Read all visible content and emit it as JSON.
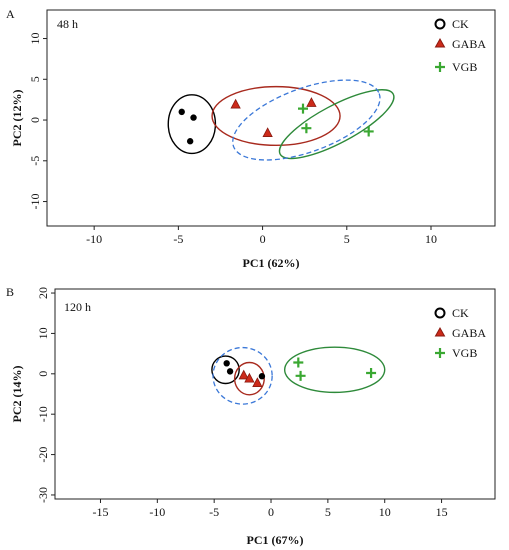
{
  "chart_data": [
    {
      "panel": "A",
      "type": "scatter",
      "annotation": "48 h",
      "xlabel": "PC1 (62%)",
      "ylabel": "PC2 (12%)",
      "xlim": [
        -12.8,
        13.8
      ],
      "ylim": [
        -13,
        13.5
      ],
      "xticks": [
        -10,
        -5,
        0,
        5,
        10
      ],
      "yticks": [
        10,
        5,
        0,
        -5,
        -10
      ],
      "legend": "top-right",
      "series": [
        {
          "name": "CK",
          "marker": "circle",
          "color": "#000000",
          "points": [
            [
              -4.8,
              1.0
            ],
            [
              -4.1,
              0.3
            ],
            [
              -4.3,
              -2.6
            ]
          ]
        },
        {
          "name": "GABA",
          "marker": "triangle",
          "color": "#cc2a1a",
          "points": [
            [
              -1.6,
              1.9
            ],
            [
              0.3,
              -1.6
            ],
            [
              2.9,
              2.1
            ]
          ]
        },
        {
          "name": "VGB",
          "marker": "plus",
          "color": "#3aa832",
          "points": [
            [
              2.4,
              1.4
            ],
            [
              2.6,
              -1.0
            ],
            [
              6.3,
              -1.4
            ]
          ]
        }
      ],
      "ellipses": [
        {
          "group": "CK",
          "color": "#000000",
          "cx": -4.2,
          "cy": -0.5,
          "rx": 1.4,
          "ry": 3.6,
          "angle": 0,
          "dash": false
        },
        {
          "group": "GABA",
          "color": "#a82a1e",
          "cx": 0.8,
          "cy": 0.5,
          "rx": 3.8,
          "ry": 3.6,
          "angle": 0,
          "dash": false
        },
        {
          "group": "VGB",
          "color": "#2e8a3a",
          "cx": 4.4,
          "cy": -0.5,
          "rx": 3.8,
          "ry": 2.3,
          "angle": -28,
          "dash": false
        },
        {
          "group": "all",
          "color": "#3b78d8",
          "cx": 2.6,
          "cy": 0.0,
          "rx": 4.6,
          "ry": 3.9,
          "angle": -20,
          "dash": true
        }
      ]
    },
    {
      "panel": "B",
      "type": "scatter",
      "annotation": "120 h",
      "xlabel": "PC1 (67%)",
      "ylabel": "PC2 (14%)",
      "xlim": [
        -19,
        19.7
      ],
      "ylim": [
        -31,
        21
      ],
      "xticks": [
        -15,
        -10,
        -5,
        0,
        5,
        10,
        15
      ],
      "yticks": [
        20,
        10,
        0,
        -10,
        -20,
        -30
      ],
      "legend": "top-right",
      "series": [
        {
          "name": "CK",
          "marker": "circle",
          "color": "#000000",
          "points": [
            [
              -3.9,
              2.6
            ],
            [
              -3.6,
              0.6
            ],
            [
              -0.8,
              -0.6
            ]
          ]
        },
        {
          "name": "GABA",
          "marker": "triangle",
          "color": "#cc2a1a",
          "points": [
            [
              -2.4,
              -0.4
            ],
            [
              -1.9,
              -1.2
            ],
            [
              -1.2,
              -2.3
            ]
          ]
        },
        {
          "name": "VGB",
          "marker": "plus",
          "color": "#3aa832",
          "points": [
            [
              2.4,
              2.8
            ],
            [
              2.6,
              -0.5
            ],
            [
              8.8,
              0.2
            ]
          ]
        }
      ],
      "ellipses": [
        {
          "group": "CK",
          "color": "#000000",
          "cx": -4.0,
          "cy": 1.0,
          "rx": 1.2,
          "ry": 3.4,
          "angle": 0,
          "dash": false
        },
        {
          "group": "GABA",
          "color": "#a82a1e",
          "cx": -1.9,
          "cy": -1.2,
          "rx": 1.3,
          "ry": 4.0,
          "angle": 0,
          "dash": false
        },
        {
          "group": "VGB",
          "color": "#2e8a3a",
          "cx": 5.6,
          "cy": 1.0,
          "rx": 4.4,
          "ry": 5.6,
          "angle": 0,
          "dash": false
        },
        {
          "group": "all",
          "color": "#3b78d8",
          "cx": -2.5,
          "cy": -0.5,
          "rx": 2.6,
          "ry": 7.0,
          "angle": 0,
          "dash": true
        }
      ]
    }
  ]
}
